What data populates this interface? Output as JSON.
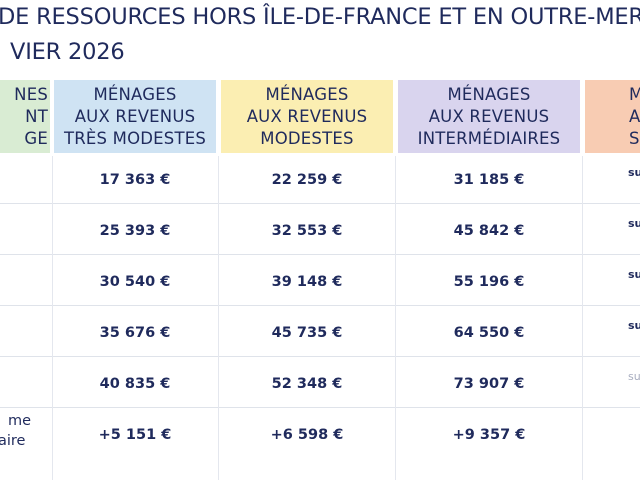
{
  "title": {
    "line1": "DE RESSOURCES HORS ÎLE-DE-FRANCE ET EN OUTRE-MER",
    "line2": "VIER 2026"
  },
  "headers": [
    {
      "lines": [
        "NES",
        "NT",
        "GE"
      ],
      "color": "#d9ecd3"
    },
    {
      "lines": [
        "MÉNAGES",
        "AUX REVENUS",
        "TRÈS MODESTES"
      ],
      "color": "#cfe3f3"
    },
    {
      "lines": [
        "MÉNAGES",
        "AUX REVENUS",
        "MODESTES"
      ],
      "color": "#fbeeb2"
    },
    {
      "lines": [
        "MÉNAGES",
        "AUX REVENUS",
        "INTERMÉDIAIRES"
      ],
      "color": "#d9d4ee"
    },
    {
      "lines": [
        "M",
        "AUX",
        "SU"
      ],
      "color": "#f8ccb3"
    }
  ],
  "rows": [
    {
      "c0": [
        "",
        ""
      ],
      "very_modest": "17 363 €",
      "modest": "22 259 €",
      "intermediate": "31 185 €",
      "partial": "su"
    },
    {
      "c0": [
        "",
        ""
      ],
      "very_modest": "25 393 €",
      "modest": "32 553 €",
      "intermediate": "45 842 €",
      "partial": "su"
    },
    {
      "c0": [
        "",
        ""
      ],
      "very_modest": "30 540 €",
      "modest": "39 148 €",
      "intermediate": "55 196 €",
      "partial": "su"
    },
    {
      "c0": [
        "",
        ""
      ],
      "very_modest": "35 676 €",
      "modest": "45 735 €",
      "intermediate": "64 550 €",
      "partial": "su"
    },
    {
      "c0": [
        "",
        ""
      ],
      "very_modest": "40 835 €",
      "modest": "52 348 €",
      "intermediate": "73 907 €",
      "partial": "su"
    },
    {
      "c0": [
        "me",
        "aire"
      ],
      "very_modest": "+5 151 €",
      "modest": "+6 598 €",
      "intermediate": "+9 357 €",
      "partial": ""
    }
  ]
}
